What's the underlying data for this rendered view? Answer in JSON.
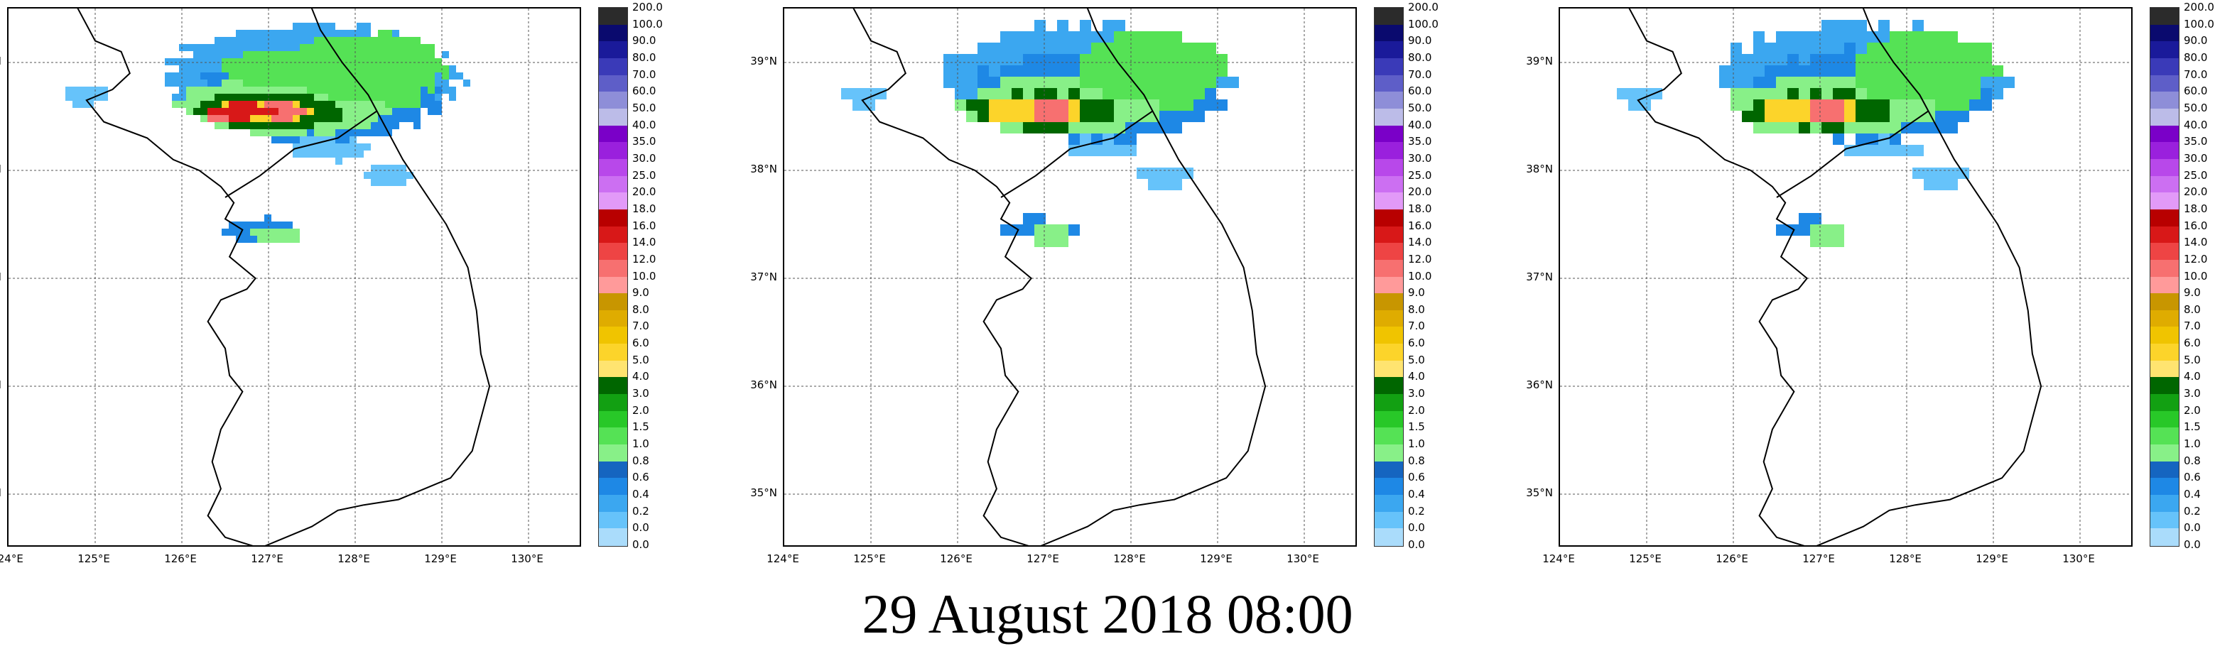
{
  "timestamp": "29 August 2018 08:00",
  "latitude_labels": [
    "39°N",
    "38°N",
    "37°N",
    "36°N",
    "35°N"
  ],
  "longitude_labels": [
    "124°E",
    "125°E",
    "126°E",
    "127°E",
    "128°E",
    "129°E",
    "130°E"
  ],
  "colorbar": {
    "labels": [
      "200.0",
      "100.0",
      "90.0",
      "80.0",
      "70.0",
      "60.0",
      "50.0",
      "40.0",
      "35.0",
      "30.0",
      "25.0",
      "20.0",
      "18.0",
      "16.0",
      "14.0",
      "12.0",
      "10.0",
      "9.0",
      "8.0",
      "7.0",
      "6.0",
      "5.0",
      "4.0",
      "3.0",
      "2.0",
      "1.5",
      "1.0",
      "0.8",
      "0.6",
      "0.4",
      "0.2",
      "0.0",
      "0.0"
    ],
    "colors": [
      "#2b2b2b",
      "#0a0a6e",
      "#1a1a9a",
      "#3a3ab8",
      "#5e5ec8",
      "#8e8ed8",
      "#bcbce8",
      "#7a00c8",
      "#9a20dd",
      "#b848ea",
      "#cc6ff2",
      "#e29af8",
      "#b80000",
      "#d81818",
      "#ee4444",
      "#f77070",
      "#ff9a9a",
      "#c89600",
      "#dfac00",
      "#f0c400",
      "#fcd42a",
      "#ffe470",
      "#006600",
      "#12a012",
      "#28c828",
      "#55e255",
      "#88f088",
      "#1565c0",
      "#1e88e5",
      "#3ba7f0",
      "#66c3fa",
      "#aadcfb"
    ]
  },
  "panels": [
    {
      "name": "panel-1",
      "style": "fine"
    },
    {
      "name": "panel-2",
      "style": "coarse"
    },
    {
      "name": "panel-3",
      "style": "coarse"
    }
  ]
}
